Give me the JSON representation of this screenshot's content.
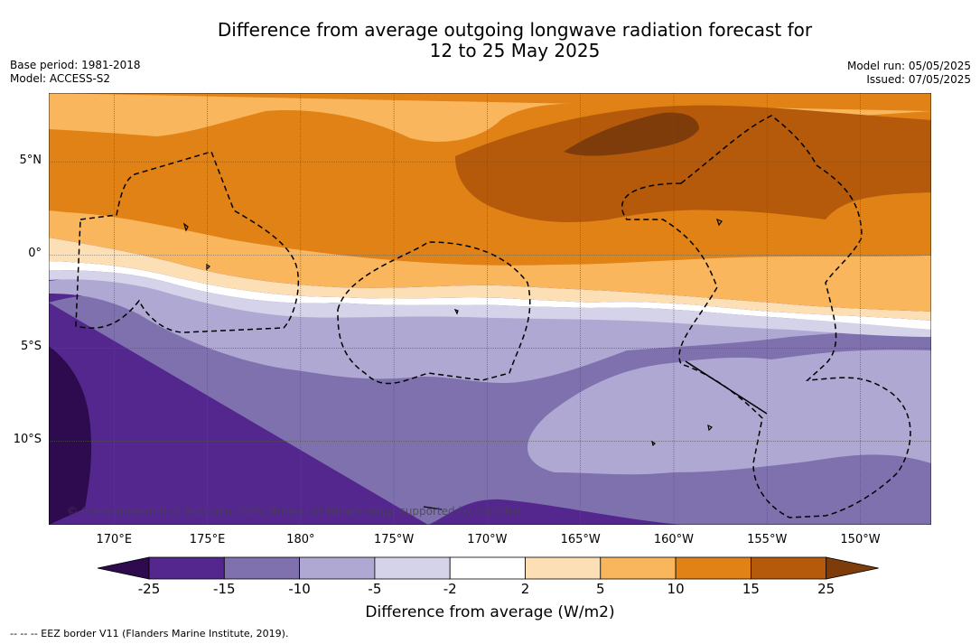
{
  "header": {
    "title_line1": "Difference from average outgoing longwave radiation forecast for",
    "title_line2": "12 to 25 May 2025",
    "base_period": "Base period: 1981-2018",
    "model": "Model: ACCESS-S2",
    "model_run": "Model run: 05/05/2025",
    "issued": "Issued: 07/05/2025"
  },
  "map": {
    "copyright": "© Commonwealth of Australia 2025, Bureau of Meteorology, supported by COSPPac",
    "lon_labels": [
      "170°E",
      "175°E",
      "180°",
      "175°W",
      "170°W",
      "165°W",
      "160°W",
      "155°W",
      "150°W"
    ],
    "lat_labels": [
      "5°N",
      "0°",
      "5°S",
      "10°S"
    ],
    "lon_values": [
      170,
      175,
      180,
      185,
      190,
      195,
      200,
      205,
      210
    ],
    "lat_values": [
      5,
      0,
      -5,
      -10
    ],
    "extent": {
      "lon_min": 166.5,
      "lon_max": 213.8,
      "lat_max": 8.7,
      "lat_min": -14.5
    }
  },
  "legend": {
    "title": "Difference from average (W/m2)",
    "levels": [
      "-25",
      "-15",
      "-10",
      "-5",
      "-2",
      "2",
      "5",
      "10",
      "15",
      "25"
    ],
    "colors": {
      "below": "#2e0b4f",
      "bins": [
        "#54278f",
        "#7e71ad",
        "#aea8d2",
        "#d4d3e9",
        "#ffffff",
        "#fddfb5",
        "#fab65d",
        "#e08216",
        "#b45a0a"
      ],
      "above": "#7e3c0a"
    }
  },
  "footnote": "-- -- -- EEZ border V11 (Flanders Marine Institute, 2019)."
}
